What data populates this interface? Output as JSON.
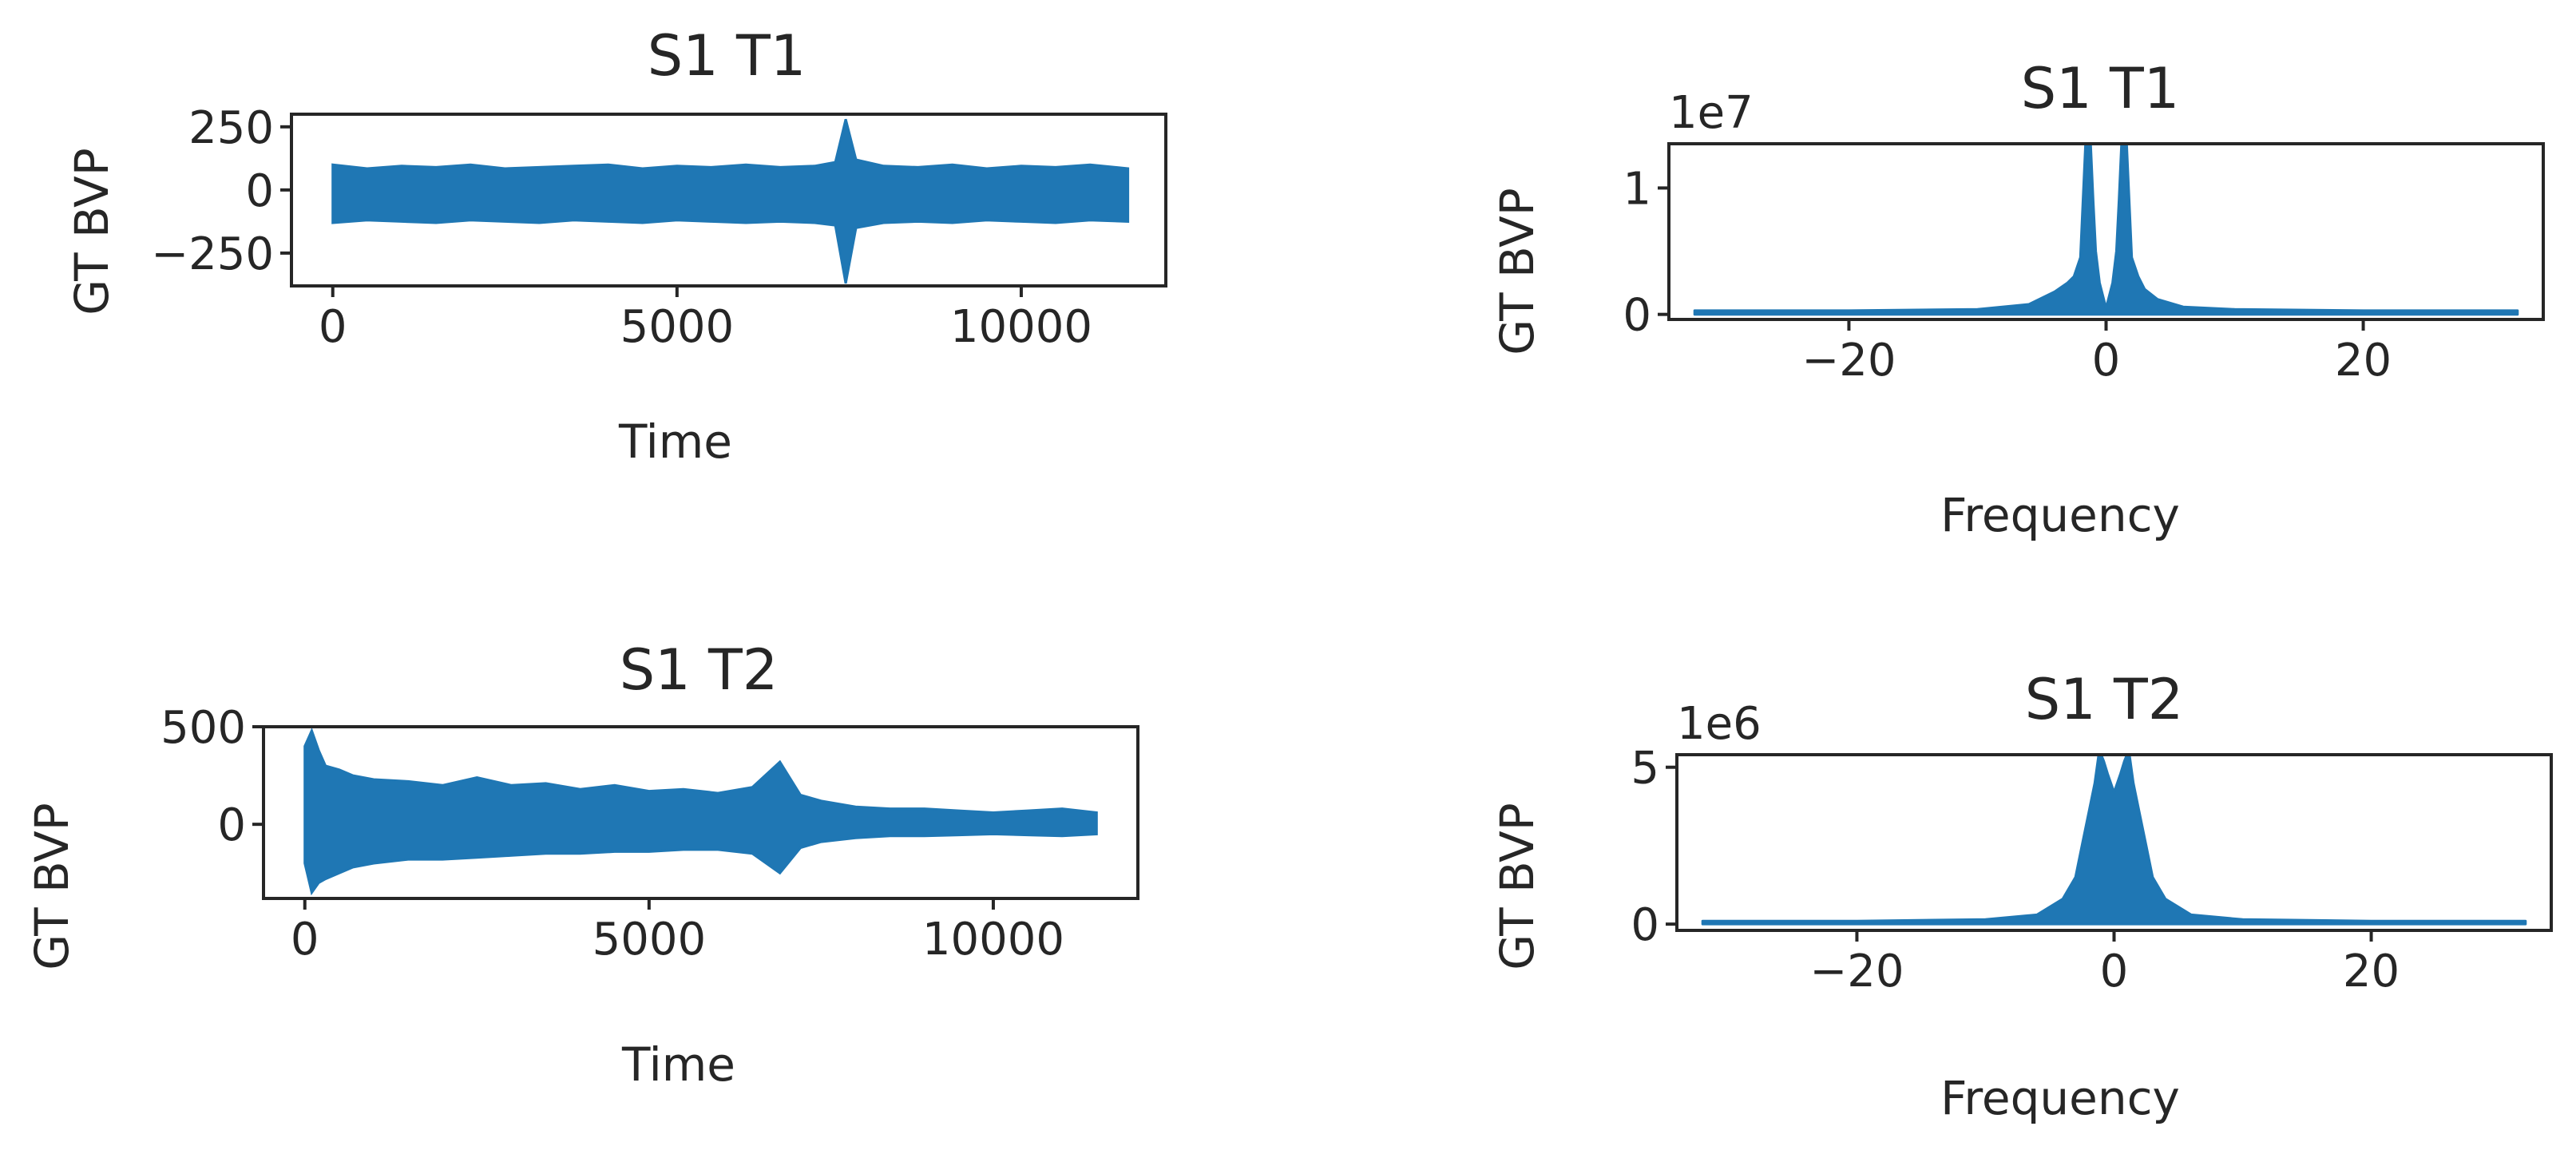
{
  "chart_data": [
    {
      "type": "line",
      "title": "S1 T1",
      "xlabel": "Time",
      "ylabel": "GT BVP",
      "xlim": [
        -600,
        12100
      ],
      "ylim": [
        -380,
        300
      ],
      "xticks": [
        0,
        5000,
        10000
      ],
      "xtick_labels": [
        "0",
        "5000",
        "10000"
      ],
      "yticks": [
        250,
        0,
        -250
      ],
      "ytick_labels": [
        "250",
        "0",
        "−250"
      ],
      "offset_label": "",
      "grid": false,
      "color": "#1f77b4",
      "series": [
        {
          "x": [
            0,
            500,
            1000,
            1500,
            2000,
            2500,
            3000,
            3500,
            4000,
            4500,
            5000,
            5500,
            6000,
            6500,
            7000,
            7300,
            7450,
            7600,
            8000,
            8500,
            9000,
            9500,
            10000,
            10500,
            11000,
            11550
          ],
          "y_upper": [
            100,
            85,
            95,
            90,
            100,
            85,
            90,
            95,
            100,
            85,
            95,
            90,
            100,
            90,
            95,
            110,
            280,
            120,
            95,
            90,
            100,
            85,
            95,
            90,
            100,
            85
          ],
          "y_lower": [
            -130,
            -120,
            -125,
            -130,
            -120,
            -125,
            -130,
            -120,
            -125,
            -130,
            -120,
            -125,
            -130,
            -125,
            -130,
            -140,
            -370,
            -150,
            -130,
            -125,
            -130,
            -120,
            -125,
            -130,
            -120,
            -125
          ]
        }
      ]
    },
    {
      "type": "line",
      "title": "S1 T1",
      "xlabel": "Frequency",
      "ylabel": "GT BVP",
      "xlim": [
        -34,
        34
      ],
      "ylim": [
        -0.04,
        1.35
      ],
      "xticks": [
        -20,
        0,
        20
      ],
      "xtick_labels": [
        "−20",
        "0",
        "20"
      ],
      "yticks": [
        1,
        0
      ],
      "ytick_labels": [
        "1",
        "0"
      ],
      "offset_label": "1e7",
      "grid": false,
      "color": "#1f77b4",
      "series": [
        {
          "x": [
            -32,
            -20,
            -10,
            -6,
            -4,
            -3,
            -2.5,
            -2,
            -1.6,
            -1.4,
            -1.2,
            -1,
            -0.8,
            -0.5,
            0,
            0.5,
            0.8,
            1,
            1.2,
            1.4,
            1.6,
            2,
            2.5,
            3,
            4,
            6,
            10,
            20,
            32
          ],
          "y": [
            0.03,
            0.03,
            0.04,
            0.08,
            0.18,
            0.25,
            0.3,
            0.45,
            1.35,
            1.35,
            1.35,
            0.9,
            0.5,
            0.25,
            0.05,
            0.25,
            0.5,
            0.9,
            1.35,
            1.35,
            1.35,
            0.45,
            0.3,
            0.2,
            0.12,
            0.06,
            0.04,
            0.03,
            0.03
          ]
        }
      ]
    },
    {
      "type": "line",
      "title": "S1 T2",
      "xlabel": "Time",
      "ylabel": "GT BVP",
      "xlim": [
        -600,
        12100
      ],
      "ylim": [
        -380,
        500
      ],
      "xticks": [
        0,
        5000,
        10000
      ],
      "xtick_labels": [
        "0",
        "5000",
        "10000"
      ],
      "yticks": [
        500,
        0
      ],
      "ytick_labels": [
        "500",
        "0"
      ],
      "offset_label": "",
      "grid": false,
      "color": "#1f77b4",
      "series": [
        {
          "x": [
            0,
            100,
            200,
            300,
            500,
            700,
            1000,
            1500,
            2000,
            2500,
            3000,
            3500,
            4000,
            4500,
            5000,
            5500,
            6000,
            6500,
            6900,
            7200,
            7500,
            8000,
            8500,
            9000,
            9500,
            10000,
            10500,
            11000,
            11500
          ],
          "y_upper": [
            400,
            480,
            380,
            300,
            280,
            250,
            230,
            220,
            200,
            240,
            200,
            210,
            180,
            200,
            170,
            180,
            160,
            190,
            320,
            150,
            120,
            90,
            80,
            80,
            70,
            60,
            70,
            80,
            60
          ],
          "y_lower": [
            -200,
            -350,
            -300,
            -280,
            -250,
            -220,
            -200,
            -180,
            -180,
            -170,
            -160,
            -150,
            -150,
            -140,
            -140,
            -130,
            -130,
            -150,
            -250,
            -120,
            -90,
            -70,
            -60,
            -60,
            -55,
            -50,
            -55,
            -60,
            -50
          ]
        }
      ]
    },
    {
      "type": "line",
      "title": "S1 T2",
      "xlabel": "Frequency",
      "ylabel": "GT BVP",
      "xlim": [
        -34,
        34
      ],
      "ylim": [
        -0.2,
        5.4
      ],
      "xticks": [
        -20,
        0,
        20
      ],
      "xtick_labels": [
        "−20",
        "0",
        "20"
      ],
      "yticks": [
        5,
        0
      ],
      "ytick_labels": [
        "5",
        "0"
      ],
      "offset_label": "1e6",
      "grid": false,
      "color": "#1f77b4",
      "series": [
        {
          "x": [
            -32,
            -20,
            -10,
            -6,
            -4,
            -3,
            -2.5,
            -2,
            -1.5,
            -1.2,
            -1,
            -0.8,
            -0.5,
            0,
            0.5,
            0.8,
            1,
            1.2,
            1.5,
            2,
            2.5,
            3,
            4,
            6,
            10,
            20,
            32
          ],
          "y": [
            0.1,
            0.1,
            0.15,
            0.3,
            0.8,
            1.5,
            2.5,
            3.5,
            4.5,
            5.4,
            5.4,
            5.2,
            4.8,
            4.2,
            4.8,
            5.2,
            5.4,
            5.4,
            4.5,
            3.5,
            2.5,
            1.5,
            0.8,
            0.3,
            0.15,
            0.1,
            0.1
          ]
        }
      ]
    }
  ]
}
